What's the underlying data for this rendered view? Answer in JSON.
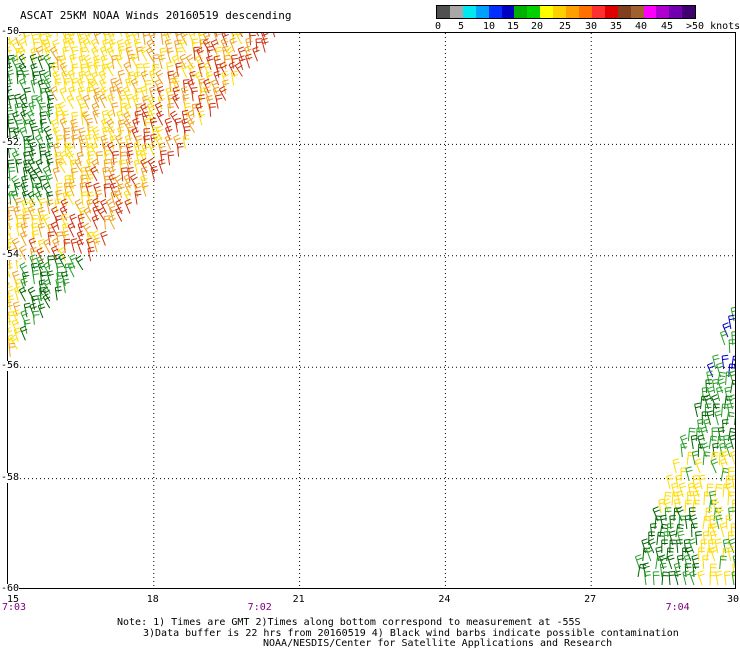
{
  "title": "ASCAT 25KM NOAA Winds 20160519 descending",
  "colorbar": {
    "colors": [
      "#505050",
      "#a8a8a8",
      "#00e8f0",
      "#00a0ff",
      "#0030ff",
      "#0000c0",
      "#00b000",
      "#00d000",
      "#ffff00",
      "#ffd000",
      "#ffa000",
      "#ff7000",
      "#ff3030",
      "#e00000",
      "#804020",
      "#a06030",
      "#ff00ff",
      "#b000d0",
      "#7000b0",
      "#400070"
    ],
    "tick_labels": [
      "0",
      "5",
      "10",
      "15",
      "20",
      "25",
      "30",
      "35",
      "40",
      "45",
      ">50 knots"
    ]
  },
  "map": {
    "lon_range": [
      15,
      30
    ],
    "lat_range": [
      -60,
      -50
    ],
    "lon_ticks": [
      "15",
      "18",
      "21",
      "24",
      "27",
      "30"
    ],
    "lat_ticks": [
      "-50",
      "-52",
      "-54",
      "-56",
      "-58",
      "-60"
    ],
    "grid": true,
    "grid_style": "dotted",
    "barb_colors": {
      "light": "#28a028",
      "dark": "#006400",
      "yellow": "#ffdc00",
      "orange": "#f0a020",
      "red": "#d03010",
      "blue": "#0000c8"
    }
  },
  "time_labels": [
    {
      "text": "7:03",
      "lon": 15.0
    },
    {
      "text": "7:02",
      "lon": 20.2
    },
    {
      "text": "7:04",
      "lon": 28.8
    }
  ],
  "notes": {
    "line1": "Note: 1) Times are GMT 2)Times along bottom correspond to measurement at -55S",
    "line2": "3)Data buffer is 22 hrs from 20160519 4) Black wind barbs indicate possible contamination",
    "line3": "NOAA/NESDIS/Center for Satellite Applications and Research"
  }
}
